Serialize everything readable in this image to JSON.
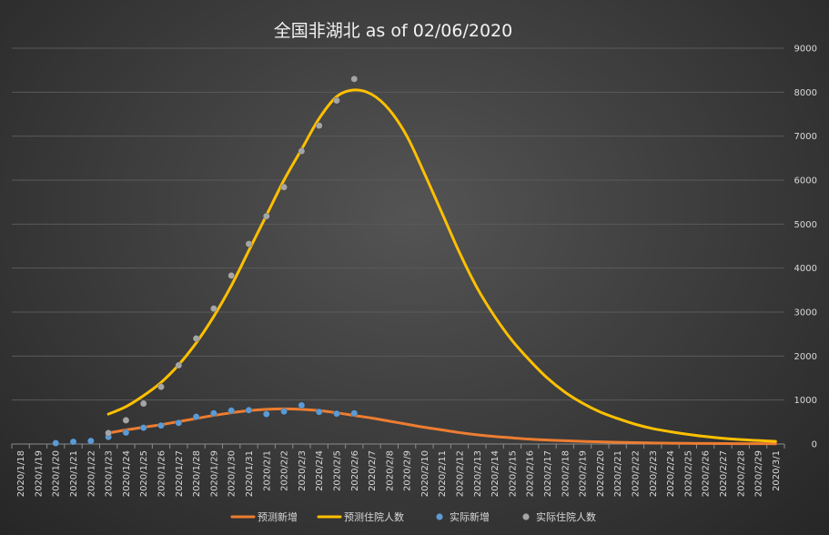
{
  "chart_data": {
    "type": "line",
    "title": "全国非湖北 as of 02/06/2020",
    "xlabel": "",
    "ylabel": "",
    "ylim": [
      0,
      9000
    ],
    "yticks": [
      0,
      1000,
      2000,
      3000,
      4000,
      5000,
      6000,
      7000,
      8000,
      9000
    ],
    "grid": "horizontal",
    "legend_position": "bottom",
    "categories": [
      "2020/1/18",
      "2020/1/19",
      "2020/1/20",
      "2020/1/21",
      "2020/1/22",
      "2020/1/23",
      "2020/1/24",
      "2020/1/25",
      "2020/1/26",
      "2020/1/27",
      "2020/1/28",
      "2020/1/29",
      "2020/1/30",
      "2020/1/31",
      "2020/2/1",
      "2020/2/2",
      "2020/2/3",
      "2020/2/4",
      "2020/2/5",
      "2020/2/6",
      "2020/2/7",
      "2020/2/8",
      "2020/2/9",
      "2020/2/10",
      "2020/2/11",
      "2020/2/12",
      "2020/2/13",
      "2020/2/14",
      "2020/2/15",
      "2020/2/16",
      "2020/2/17",
      "2020/2/18",
      "2020/2/19",
      "2020/2/20",
      "2020/2/21",
      "2020/2/22",
      "2020/2/23",
      "2020/2/24",
      "2020/2/25",
      "2020/2/26",
      "2020/2/27",
      "2020/2/28",
      "2020/2/29",
      "2020/3/1"
    ],
    "series": [
      {
        "name": "预测新增",
        "kind": "line",
        "color": "#ed7d31",
        "values": [
          null,
          null,
          null,
          null,
          null,
          250,
          320,
          380,
          440,
          510,
          580,
          650,
          710,
          760,
          790,
          800,
          790,
          760,
          710,
          650,
          590,
          520,
          450,
          380,
          320,
          260,
          210,
          170,
          140,
          110,
          90,
          75,
          60,
          48,
          38,
          30,
          24,
          19,
          15,
          12,
          10,
          8,
          7,
          6
        ]
      },
      {
        "name": "预测住院人数",
        "kind": "line",
        "color": "#ffc000",
        "values": [
          null,
          null,
          null,
          null,
          null,
          680,
          850,
          1100,
          1400,
          1800,
          2300,
          2900,
          3600,
          4400,
          5200,
          6000,
          6700,
          7400,
          7900,
          8050,
          7950,
          7600,
          7000,
          6150,
          5250,
          4350,
          3550,
          2900,
          2350,
          1900,
          1500,
          1180,
          930,
          730,
          580,
          450,
          350,
          280,
          220,
          170,
          130,
          100,
          80,
          60
        ]
      },
      {
        "name": "实际新增",
        "kind": "scatter",
        "color": "#5b9bd5",
        "values": [
          null,
          null,
          20,
          50,
          70,
          160,
          260,
          370,
          420,
          480,
          620,
          700,
          760,
          770,
          680,
          740,
          880,
          730,
          690,
          700,
          null,
          null,
          null,
          null,
          null,
          null,
          null,
          null,
          null,
          null,
          null,
          null,
          null,
          null,
          null,
          null,
          null,
          null,
          null,
          null,
          null,
          null,
          null,
          null
        ]
      },
      {
        "name": "实际住院人数",
        "kind": "scatter",
        "color": "#a5a5a5",
        "values": [
          null,
          null,
          null,
          null,
          null,
          250,
          540,
          920,
          1300,
          1790,
          2400,
          3080,
          3830,
          4550,
          5180,
          5840,
          6660,
          7240,
          7810,
          8300,
          null,
          null,
          null,
          null,
          null,
          null,
          null,
          null,
          null,
          null,
          null,
          null,
          null,
          null,
          null,
          null,
          null,
          null,
          null,
          null,
          null,
          null,
          null,
          null
        ]
      }
    ]
  }
}
